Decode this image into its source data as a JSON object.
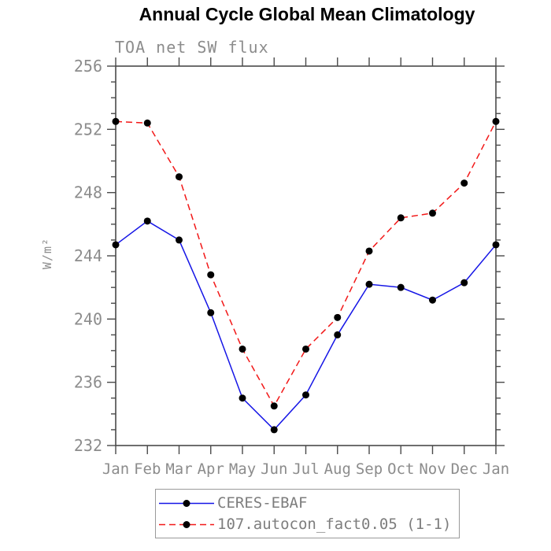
{
  "header": {
    "title": "Annual Cycle Global Mean Climatology",
    "subtitle": "TOA net SW flux"
  },
  "colors": {
    "background": "#ffffff",
    "title_text": "#000000",
    "axis": "#4a4a4a",
    "label_text": "#8c8c8c",
    "legend_border": "#9a9a9a",
    "marker": "#000000",
    "series_blue": "#1515e6",
    "series_red": "#f21818"
  },
  "chart_data": {
    "type": "line",
    "title": "Annual Cycle Global Mean Climatology",
    "subtitle": "TOA net SW flux",
    "xlabel": "",
    "ylabel": "W/m²",
    "categories": [
      "Jan",
      "Feb",
      "Mar",
      "Apr",
      "May",
      "Jun",
      "Jul",
      "Aug",
      "Sep",
      "Oct",
      "Nov",
      "Dec",
      "Jan"
    ],
    "ylim": [
      232,
      256
    ],
    "yticks": [
      232,
      236,
      240,
      244,
      248,
      252,
      256
    ],
    "ytick_minor_step": 1,
    "grid": false,
    "legend_position": "bottom-center",
    "series": [
      {
        "name": "CERES-EBAF",
        "color": "#1515e6",
        "style": "solid",
        "marker": "circle",
        "marker_color": "#000000",
        "values": [
          244.7,
          246.2,
          245.0,
          240.4,
          235.0,
          233.0,
          235.2,
          239.0,
          242.2,
          242.0,
          241.2,
          242.3,
          244.7
        ]
      },
      {
        "name": "107.autocon_fact0.05 (1-1)",
        "color": "#f21818",
        "style": "dashed",
        "marker": "circle",
        "marker_color": "#000000",
        "values": [
          252.5,
          252.4,
          249.0,
          242.8,
          238.1,
          234.5,
          238.1,
          240.1,
          244.3,
          246.4,
          246.7,
          248.6,
          252.5
        ]
      }
    ]
  }
}
